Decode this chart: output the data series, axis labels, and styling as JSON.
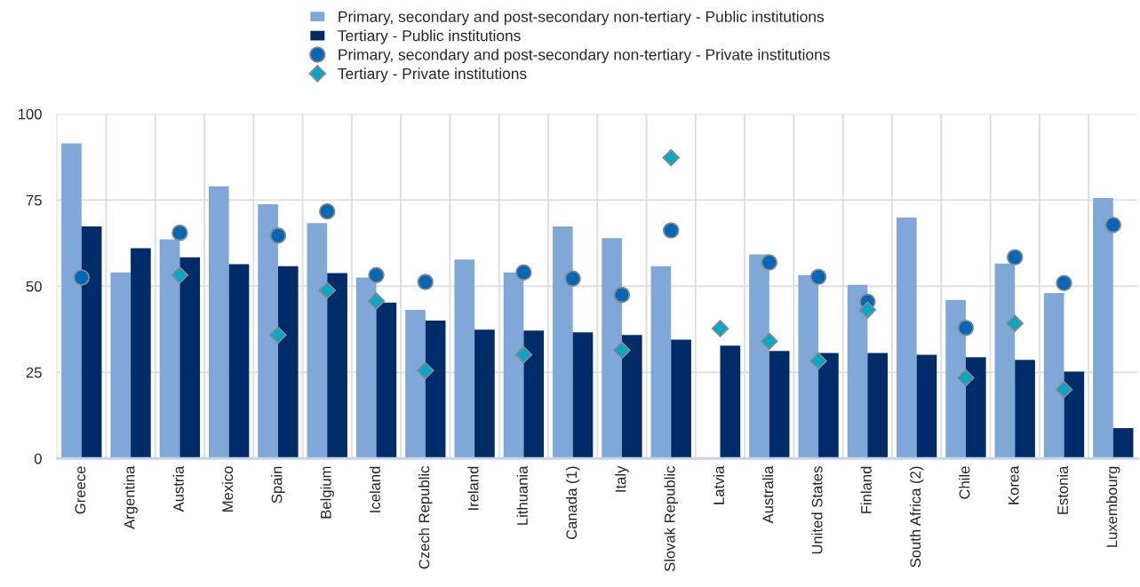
{
  "chart_data": {
    "type": "bar",
    "categories": [
      "Greece",
      "Argentina",
      "Austria",
      "Mexico",
      "Spain",
      "Belgium",
      "Iceland",
      "Czech Republic",
      "Ireland",
      "Lithuania",
      "Canada (1)",
      "Italy",
      "Slovak Republic",
      "Latvia",
      "Australia",
      "United States",
      "Finland",
      "South Africa (2)",
      "Chile",
      "Korea",
      "Estonia",
      "Luxembourg"
    ],
    "series": [
      {
        "name": "Primary, secondary and post-secondary non-tertiary - Public institutions",
        "color": "#7fa7d8",
        "values": [
          91.4,
          54,
          63.6,
          79,
          73.8,
          68.3,
          52.5,
          43.1,
          57.7,
          54,
          67.3,
          63.9,
          55.8,
          null,
          59.2,
          53.2,
          50.4,
          69.9,
          46,
          56.6,
          48,
          75.6
        ]
      },
      {
        "name": "Tertiary - Public institutions",
        "color": "#002d6a",
        "values": [
          67.3,
          61,
          58.4,
          56.4,
          55.8,
          53.8,
          45.2,
          40,
          37.4,
          37.1,
          36.6,
          35.8,
          34.5,
          32.7,
          31.2,
          30.6,
          30.6,
          30.1,
          29.4,
          28.6,
          25.2,
          8.8
        ]
      },
      {
        "name": "Primary, secondary and post-secondary non-tertiary - Private institutions",
        "type": "scatter",
        "marker": "circle",
        "color": "#0068b8",
        "values": [
          52.5,
          null,
          65.5,
          null,
          64.7,
          71.7,
          53.2,
          51.2,
          null,
          54,
          52.2,
          47.5,
          66.2,
          null,
          56.9,
          52.7,
          45.5,
          null,
          37.9,
          58.4,
          50.9,
          67.8
        ]
      },
      {
        "name": "Tertiary - Private institutions",
        "type": "scatter",
        "marker": "diamond",
        "color": "#00a9c8",
        "values": [
          null,
          null,
          53.2,
          null,
          35.8,
          48.8,
          45.7,
          25.5,
          null,
          30.1,
          null,
          31.4,
          87.3,
          37.7,
          34,
          28.3,
          43.1,
          null,
          23.4,
          39.2,
          20,
          null
        ]
      }
    ],
    "ylim": [
      0,
      100
    ],
    "yticks": [
      0,
      25,
      50,
      75,
      100
    ],
    "grid": true,
    "legend": "top"
  }
}
